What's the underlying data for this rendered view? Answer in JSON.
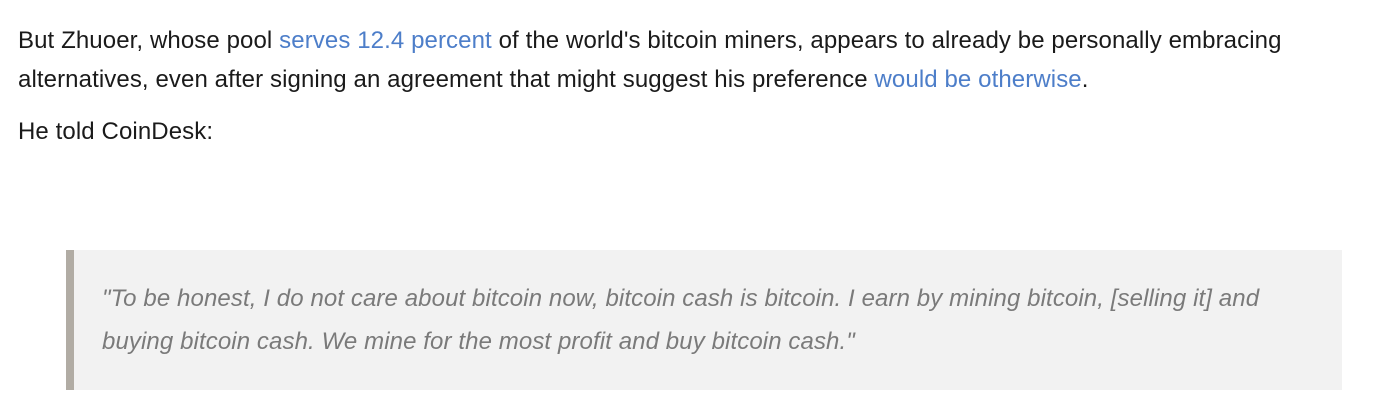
{
  "article": {
    "paragraph1": {
      "text_before_link1": "But Zhuoer, whose pool ",
      "link1": "serves 12.4 percent",
      "text_between_links": " of the world's bitcoin miners, appears to already be personally embracing alternatives, even after signing an agreement that might suggest his preference ",
      "link2": "would be otherwise",
      "text_after_link2": "."
    },
    "paragraph2": "He told CoinDesk:",
    "blockquote": "\"To be honest, I do not care about bitcoin now, bitcoin cash is bitcoin. I earn by mining bitcoin, [selling it] and buying bitcoin cash. We mine for the most profit and buy bitcoin cash.\""
  },
  "colors": {
    "link": "#4d7ec9",
    "text": "#1a1a1a",
    "quote_text": "#7a7a7a",
    "quote_background": "#f2f2f2",
    "quote_border": "#b1aca4"
  }
}
